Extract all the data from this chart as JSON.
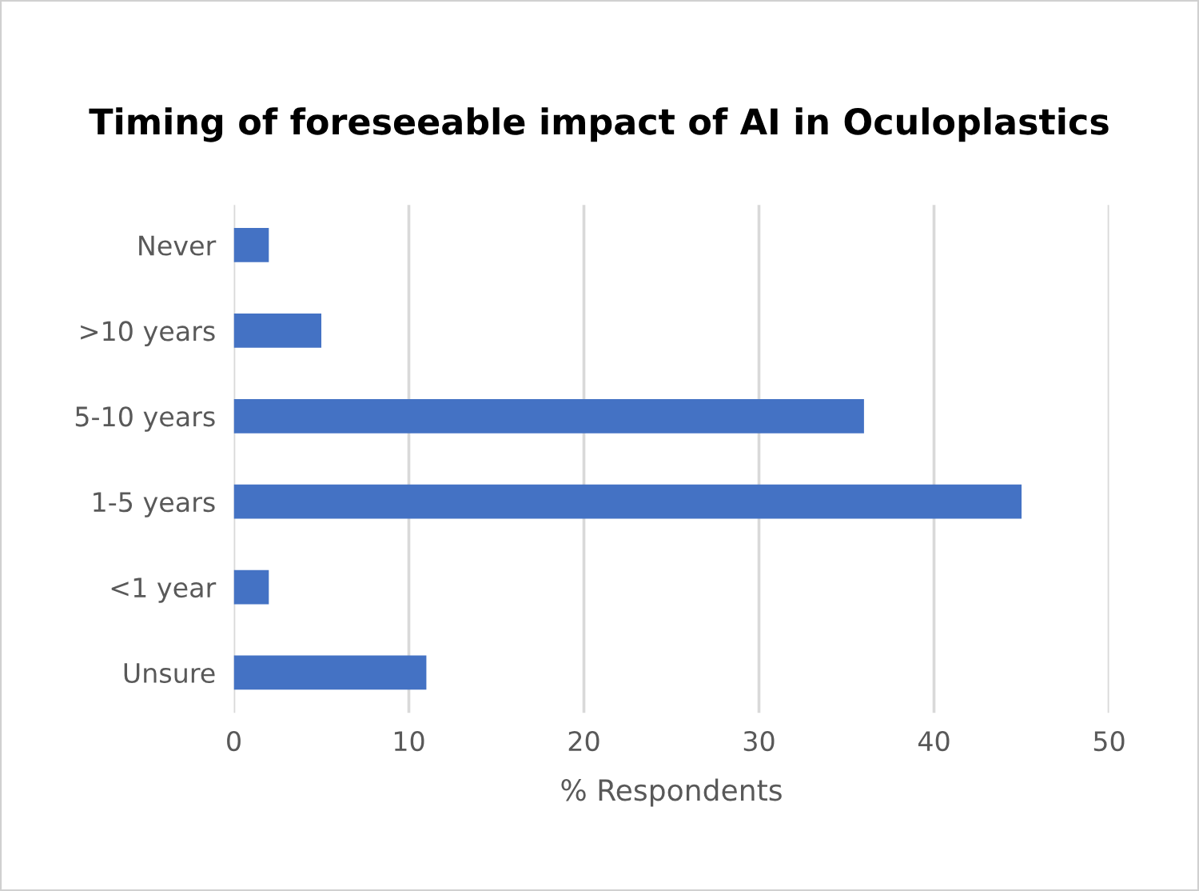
{
  "chart_data": {
    "type": "bar",
    "orientation": "horizontal",
    "title": "Timing of foreseeable impact of AI in Oculoplastics",
    "categories": [
      "Never",
      ">10 years",
      "5-10 years",
      "1-5 years",
      "<1 year",
      "Unsure"
    ],
    "values": [
      2,
      5,
      36,
      45,
      2,
      11
    ],
    "color": "#4472c4",
    "xlabel": "% Respondents",
    "xlim": [
      0,
      50
    ],
    "xticks": [
      0,
      10,
      20,
      30,
      40,
      50
    ],
    "grid": "x"
  }
}
